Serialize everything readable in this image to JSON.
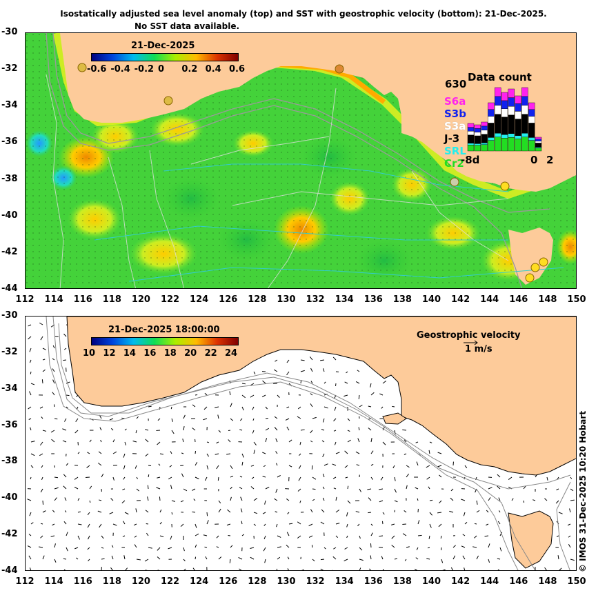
{
  "title": "Isostatically adjusted sea level anomaly (top) and SST with geostrophic velocity (bottom): 21-Dec-2025.",
  "subtitle": "No SST data available.",
  "top_panel": {
    "colorbar_title": "21-Dec-2025",
    "colorbar_ticks": [
      "-0.6",
      "-0.4",
      "-0.2",
      "0",
      "0.2",
      "0.4",
      "0.6"
    ],
    "colorbar_colors": [
      "#00007f",
      "#0044dd",
      "#00bbee",
      "#11dd55",
      "#aaee00",
      "#ffbb00",
      "#dd3300",
      "#800000"
    ]
  },
  "bottom_panel": {
    "colorbar_title": "21-Dec-2025 18:00:00",
    "colorbar_ticks": [
      "10",
      "12",
      "14",
      "16",
      "18",
      "20",
      "22",
      "24"
    ],
    "velocity_title": "Geostrophic velocity",
    "velocity_scale": "1 m/s"
  },
  "axes": {
    "y_ticks": [
      "-30",
      "-32",
      "-34",
      "-36",
      "-38",
      "-40",
      "-42",
      "-44"
    ],
    "x_ticks": [
      "112",
      "114",
      "116",
      "118",
      "120",
      "122",
      "124",
      "126",
      "128",
      "130",
      "132",
      "134",
      "136",
      "138",
      "140",
      "142",
      "144",
      "146",
      "148",
      "150"
    ]
  },
  "data_count": {
    "title": "Data count",
    "max_label": "630",
    "satellites": [
      {
        "name": "S6a",
        "color": "#ff22ee"
      },
      {
        "name": "S3b",
        "color": "#1122ee"
      },
      {
        "name": "S3a",
        "color": "#ffffff"
      },
      {
        "name": "J-3",
        "color": "#000000"
      },
      {
        "name": "SRL",
        "color": "#22eeee"
      },
      {
        "name": "Cr2",
        "color": "#22dd22"
      }
    ],
    "x_left_label": "-8d",
    "x_mid_label": "0",
    "x_right_label": "2"
  },
  "colors": {
    "land": "#fdcb9a",
    "ocean_base": "#33cc33"
  },
  "credit": "© IMOS 31-Dec-2025 10:20 Hobart"
}
